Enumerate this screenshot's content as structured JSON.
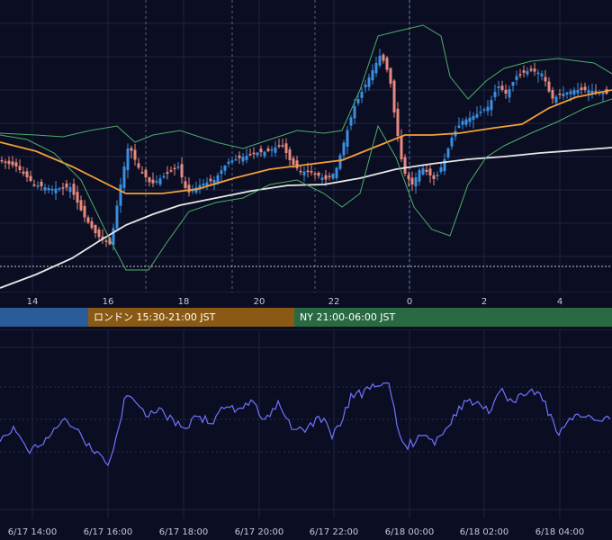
{
  "chart_data": [
    {
      "type": "candlestick",
      "panel": "price",
      "x_tick_labels": [
        "14",
        "16",
        "18",
        "20",
        "22",
        "0",
        "2",
        "4"
      ],
      "series": [
        {
          "name": "",
          "kind": "moving-average",
          "color": "#f2a03a"
        },
        {
          "name": "",
          "kind": "moving-average",
          "color": "#e8e8e8"
        },
        {
          "name": "",
          "kind": "bollinger-bands",
          "color": "#4caf6a"
        }
      ],
      "reference_line": "dotted horizontal",
      "up_color": "#3b8fe0",
      "down_color": "#e88a7e",
      "grid": true
    },
    {
      "type": "line",
      "panel": "oscillator",
      "color": "#6f73ff",
      "x_tick_labels": [
        "6/17 14:00",
        "6/17 16:00",
        "6/17 18:00",
        "6/17 20:00",
        "6/17 22:00",
        "6/18 00:00",
        "6/18 02:00",
        "6/18 04:00"
      ],
      "grid": true
    }
  ],
  "sessions": [
    {
      "label": "",
      "color": "#2a5c9a"
    },
    {
      "label": "ロンドン 15:30-21:00 JST",
      "color": "#8a5a14"
    },
    {
      "label": "NY 21:00-06:00 JST",
      "color": "#2a6a42"
    }
  ],
  "colors": {
    "background": "#0b0d22",
    "grid": "#1f2340",
    "separator": "#2a2f52"
  }
}
